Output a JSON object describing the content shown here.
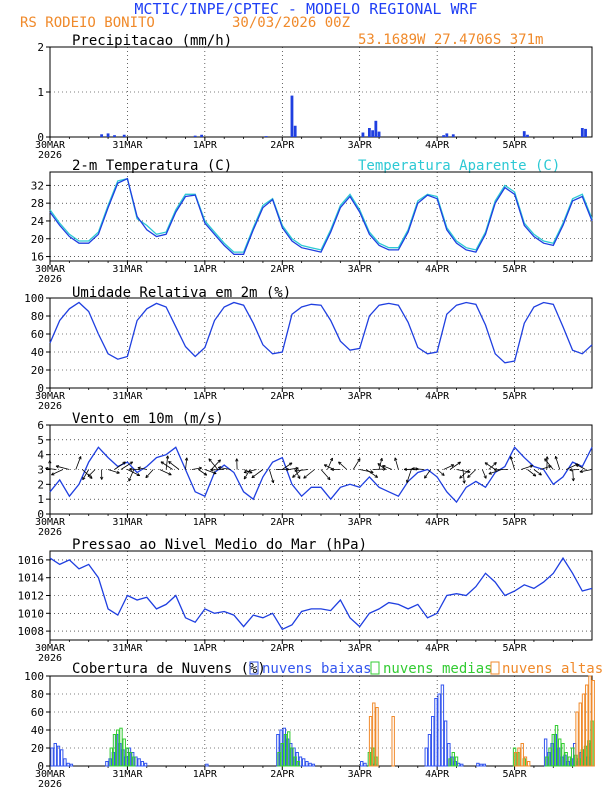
{
  "header": {
    "title": "MCTIC/INPE/CPTEC - MODELO REGIONAL WRF",
    "location": "RS RODEIO BONITO",
    "run": "30/03/2026 00Z",
    "coords": "53.1689W 27.4706S 371m"
  },
  "colors": {
    "title": "#1f3ff5",
    "orange": "#f08a2b",
    "temp": "#1f3fe0",
    "apparent": "#2cc9d4",
    "low_cloud": "#3355ee",
    "mid_cloud": "#33cc33",
    "high_cloud": "#f08a2b",
    "arrow": "#000000"
  },
  "x_axis": {
    "ticks": [
      "30MAR",
      "31MAR",
      "1APR",
      "2APR",
      "3APR",
      "4APR",
      "5APR"
    ],
    "year": "2026",
    "hours": 168
  },
  "chart_data": [
    {
      "id": "precip",
      "type": "bar",
      "title": "Precipitacao (mm/h)",
      "ylim": [
        0,
        2
      ],
      "yticks": [
        "0",
        "1",
        "2"
      ],
      "x_unit": "hours since 30MAR 00Z",
      "bars": [
        {
          "x": 16,
          "v": 0.06
        },
        {
          "x": 18,
          "v": 0.08
        },
        {
          "x": 20,
          "v": 0.04
        },
        {
          "x": 23,
          "v": 0.05
        },
        {
          "x": 45,
          "v": 0.03
        },
        {
          "x": 47,
          "v": 0.05
        },
        {
          "x": 67,
          "v": 0.02
        },
        {
          "x": 75,
          "v": 0.92
        },
        {
          "x": 76,
          "v": 0.25
        },
        {
          "x": 97,
          "v": 0.1
        },
        {
          "x": 99,
          "v": 0.2
        },
        {
          "x": 100,
          "v": 0.15
        },
        {
          "x": 101,
          "v": 0.36
        },
        {
          "x": 102,
          "v": 0.12
        },
        {
          "x": 122,
          "v": 0.04
        },
        {
          "x": 123,
          "v": 0.08
        },
        {
          "x": 125,
          "v": 0.06
        },
        {
          "x": 147,
          "v": 0.13
        },
        {
          "x": 148,
          "v": 0.05
        },
        {
          "x": 165,
          "v": 0.2
        },
        {
          "x": 166,
          "v": 0.18
        }
      ]
    },
    {
      "id": "temperature",
      "type": "line",
      "title": "2-m Temperatura (C)",
      "legend": "Temperatura Aparente (C)",
      "ylim": [
        15,
        35
      ],
      "yticks": [
        "16",
        "20",
        "24",
        "28",
        "32"
      ],
      "ytick_values": [
        16,
        20,
        24,
        28,
        32
      ],
      "series": [
        {
          "name": "2-m Temperatura (C)",
          "x": [
            0,
            3,
            6,
            9,
            12,
            15,
            18,
            21,
            24,
            27,
            30,
            33,
            36,
            39,
            42,
            45,
            48,
            51,
            54,
            57,
            60,
            63,
            66,
            69,
            72,
            75,
            78,
            81,
            84,
            87,
            90,
            93,
            96,
            99,
            102,
            105,
            108,
            111,
            114,
            117,
            120,
            123,
            126,
            129,
            132,
            135,
            138,
            141,
            144,
            147,
            150,
            153,
            156,
            159,
            162,
            165,
            168
          ],
          "values": [
            26,
            23,
            20.5,
            19,
            19,
            21,
            27,
            32.5,
            33.5,
            25,
            22,
            20.5,
            21,
            26,
            29.5,
            29.8,
            23.5,
            21,
            18.5,
            16.5,
            16.5,
            22,
            27,
            28.8,
            22.5,
            19.5,
            18,
            17.5,
            17,
            21.5,
            27,
            29.5,
            26,
            21,
            18.5,
            17.5,
            17.5,
            21.5,
            28,
            29.8,
            29,
            22,
            19,
            17.5,
            17,
            21,
            28,
            31.5,
            30,
            23,
            20.5,
            19,
            18.5,
            23,
            28.5,
            29.5,
            24
          ]
        },
        {
          "name": "Temperatura Aparente (C)",
          "x": [
            0,
            3,
            6,
            9,
            12,
            15,
            18,
            21,
            24,
            27,
            30,
            33,
            36,
            39,
            42,
            45,
            48,
            51,
            54,
            57,
            60,
            63,
            66,
            69,
            72,
            75,
            78,
            81,
            84,
            87,
            90,
            93,
            96,
            99,
            102,
            105,
            108,
            111,
            114,
            117,
            120,
            123,
            126,
            129,
            132,
            135,
            138,
            141,
            144,
            147,
            150,
            153,
            156,
            159,
            162,
            165,
            168
          ],
          "values": [
            26.5,
            23.5,
            21,
            19.5,
            19.5,
            21.5,
            27.5,
            33,
            33.5,
            24.5,
            23,
            21,
            21.5,
            26.5,
            30,
            30,
            24,
            21.5,
            19,
            17,
            17,
            22.5,
            27.5,
            29,
            23,
            20,
            18.5,
            18,
            17.5,
            22,
            27.5,
            30,
            26.5,
            21.5,
            19,
            18,
            18,
            22,
            28.5,
            30,
            29.5,
            22.5,
            19.5,
            18,
            17.5,
            21.5,
            28.5,
            32,
            30.5,
            23.5,
            21,
            19.5,
            19,
            23.5,
            29,
            30,
            24.5
          ]
        }
      ]
    },
    {
      "id": "humidity",
      "type": "line",
      "title": "Umidade Relativa em 2m (%)",
      "ylim": [
        0,
        100
      ],
      "yticks": [
        "0",
        "20",
        "40",
        "60",
        "80",
        "100"
      ],
      "ytick_values": [
        0,
        20,
        40,
        60,
        80,
        100
      ],
      "series": [
        {
          "name": "Umidade Relativa",
          "x": [
            0,
            3,
            6,
            9,
            12,
            15,
            18,
            21,
            24,
            27,
            30,
            33,
            36,
            39,
            42,
            45,
            48,
            51,
            54,
            57,
            60,
            63,
            66,
            69,
            72,
            75,
            78,
            81,
            84,
            87,
            90,
            93,
            96,
            99,
            102,
            105,
            108,
            111,
            114,
            117,
            120,
            123,
            126,
            129,
            132,
            135,
            138,
            141,
            144,
            147,
            150,
            153,
            156,
            159,
            162,
            165,
            168
          ],
          "values": [
            50,
            75,
            88,
            95,
            85,
            60,
            38,
            32,
            35,
            75,
            88,
            94,
            90,
            68,
            46,
            35,
            45,
            75,
            90,
            95,
            92,
            72,
            48,
            38,
            40,
            82,
            90,
            93,
            92,
            75,
            52,
            42,
            44,
            80,
            92,
            94,
            92,
            73,
            45,
            38,
            40,
            82,
            92,
            95,
            93,
            70,
            38,
            28,
            30,
            72,
            90,
            95,
            93,
            68,
            42,
            38,
            48
          ]
        }
      ]
    },
    {
      "id": "wind",
      "type": "line",
      "title": "Vento em 10m (m/s)",
      "ylim": [
        0,
        6
      ],
      "yticks": [
        "0",
        "1",
        "2",
        "3",
        "4",
        "5",
        "6"
      ],
      "ytick_values": [
        0,
        1,
        2,
        3,
        4,
        5,
        6
      ],
      "series": [
        {
          "name": "Vento em 10m",
          "x": [
            0,
            3,
            6,
            9,
            12,
            15,
            18,
            21,
            24,
            27,
            30,
            33,
            36,
            39,
            42,
            45,
            48,
            51,
            54,
            57,
            60,
            63,
            66,
            69,
            72,
            75,
            78,
            81,
            84,
            87,
            90,
            93,
            96,
            99,
            102,
            105,
            108,
            111,
            114,
            117,
            120,
            123,
            126,
            129,
            132,
            135,
            138,
            141,
            144,
            147,
            150,
            153,
            156,
            159,
            162,
            165,
            168
          ],
          "values": [
            1.5,
            2.3,
            1.2,
            2,
            3.5,
            4.5,
            3.8,
            3.2,
            3.5,
            2.8,
            3.2,
            3.8,
            4,
            4.5,
            3,
            1.5,
            1.2,
            2.8,
            3.3,
            2.8,
            1.5,
            1,
            2.5,
            3.5,
            3.8,
            2,
            1.2,
            1.8,
            1.8,
            1,
            1.8,
            2,
            1.8,
            2.5,
            1.8,
            1.5,
            1.2,
            2.2,
            2.8,
            3,
            2.5,
            1.5,
            0.8,
            1.8,
            2.2,
            1.8,
            2.8,
            3.2,
            4.5,
            3.8,
            3.2,
            3,
            2,
            2.5,
            3.5,
            3.2,
            4.5
          ]
        }
      ],
      "arrows_note": "wind direction barbs drawn along y=3"
    },
    {
      "id": "pressure",
      "type": "line",
      "title": "Pressao ao Nivel Medio do Mar (hPa)",
      "ylim": [
        1007,
        1017
      ],
      "yticks": [
        "1008",
        "1010",
        "1012",
        "1014",
        "1016"
      ],
      "ytick_values": [
        1008,
        1010,
        1012,
        1014,
        1016
      ],
      "series": [
        {
          "name": "Pressao",
          "x": [
            0,
            3,
            6,
            9,
            12,
            15,
            18,
            21,
            24,
            27,
            30,
            33,
            36,
            39,
            42,
            45,
            48,
            51,
            54,
            57,
            60,
            63,
            66,
            69,
            72,
            75,
            78,
            81,
            84,
            87,
            90,
            93,
            96,
            99,
            102,
            105,
            108,
            111,
            114,
            117,
            120,
            123,
            126,
            129,
            132,
            135,
            138,
            141,
            144,
            147,
            150,
            153,
            156,
            159,
            162,
            165,
            168
          ],
          "values": [
            1016.2,
            1015.5,
            1016,
            1015,
            1015.5,
            1014,
            1010.5,
            1009.8,
            1012,
            1011.5,
            1011.8,
            1010.5,
            1011,
            1012,
            1009.5,
            1009,
            1010.5,
            1010,
            1010.2,
            1009.8,
            1008.5,
            1009.8,
            1009.5,
            1010,
            1008.2,
            1008.7,
            1010.2,
            1010.5,
            1010.5,
            1010.3,
            1011.5,
            1009.5,
            1008.5,
            1010,
            1010.5,
            1011.2,
            1011,
            1010.5,
            1011,
            1009.5,
            1010,
            1012,
            1012.2,
            1012,
            1013,
            1014.5,
            1013.5,
            1012,
            1012.5,
            1013.2,
            1012.8,
            1013.5,
            1014.5,
            1016.2,
            1014.5,
            1012.5,
            1012.8
          ]
        }
      ]
    },
    {
      "id": "clouds",
      "type": "bar",
      "title": "Cobertura de Nuvens (%)",
      "ylim": [
        0,
        100
      ],
      "yticks": [
        "0",
        "20",
        "40",
        "60",
        "80",
        "100"
      ],
      "ytick_values": [
        0,
        20,
        40,
        60,
        80,
        100
      ],
      "legend": [
        "nuvens baixas",
        "nuvens medias",
        "nuvens altas"
      ],
      "series": [
        {
          "name": "nuvens baixas",
          "x": [
            1,
            2,
            3,
            4,
            5,
            6,
            7,
            18,
            19,
            20,
            21,
            22,
            23,
            24,
            25,
            26,
            27,
            28,
            29,
            30,
            49,
            71,
            72,
            73,
            74,
            75,
            76,
            77,
            78,
            79,
            80,
            81,
            82,
            97,
            98,
            101,
            117,
            118,
            119,
            120,
            121,
            122,
            123,
            124,
            125,
            126,
            127,
            128,
            133,
            134,
            135,
            154,
            155,
            156,
            157,
            158,
            159,
            160,
            161,
            162,
            163,
            164,
            165,
            166,
            167,
            168
          ],
          "values": [
            20,
            25,
            22,
            18,
            8,
            3,
            2,
            5,
            8,
            15,
            35,
            25,
            18,
            10,
            20,
            15,
            10,
            8,
            5,
            3,
            2,
            35,
            40,
            42,
            30,
            25,
            20,
            15,
            10,
            8,
            5,
            3,
            2,
            5,
            3,
            2,
            20,
            35,
            55,
            75,
            80,
            90,
            50,
            25,
            10,
            5,
            3,
            2,
            3,
            2,
            2,
            30,
            15,
            25,
            35,
            20,
            10,
            12,
            5,
            8,
            25,
            5,
            15,
            18,
            10,
            25
          ]
        },
        {
          "name": "nuvens medias",
          "x": [
            19,
            20,
            21,
            22,
            23,
            24,
            25,
            26,
            71,
            72,
            73,
            74,
            75,
            76,
            77,
            99,
            100,
            101,
            124,
            125,
            126,
            144,
            145,
            147,
            154,
            155,
            156,
            157,
            158,
            159,
            160,
            161,
            162,
            163,
            164,
            165,
            166,
            167,
            168
          ],
          "values": [
            20,
            35,
            40,
            42,
            30,
            20,
            15,
            10,
            15,
            25,
            35,
            38,
            20,
            10,
            5,
            15,
            20,
            10,
            8,
            15,
            10,
            20,
            15,
            8,
            10,
            20,
            35,
            45,
            30,
            25,
            15,
            10,
            20,
            12,
            8,
            18,
            22,
            28,
            50
          ]
        },
        {
          "name": "nuvens altas",
          "x": [
            99,
            100,
            101,
            106,
            144,
            145,
            146,
            147,
            148,
            163,
            164,
            165,
            166,
            167,
            168
          ],
          "values": [
            55,
            70,
            65,
            55,
            15,
            20,
            25,
            10,
            5,
            60,
            70,
            80,
            90,
            100,
            95
          ]
        }
      ]
    }
  ]
}
